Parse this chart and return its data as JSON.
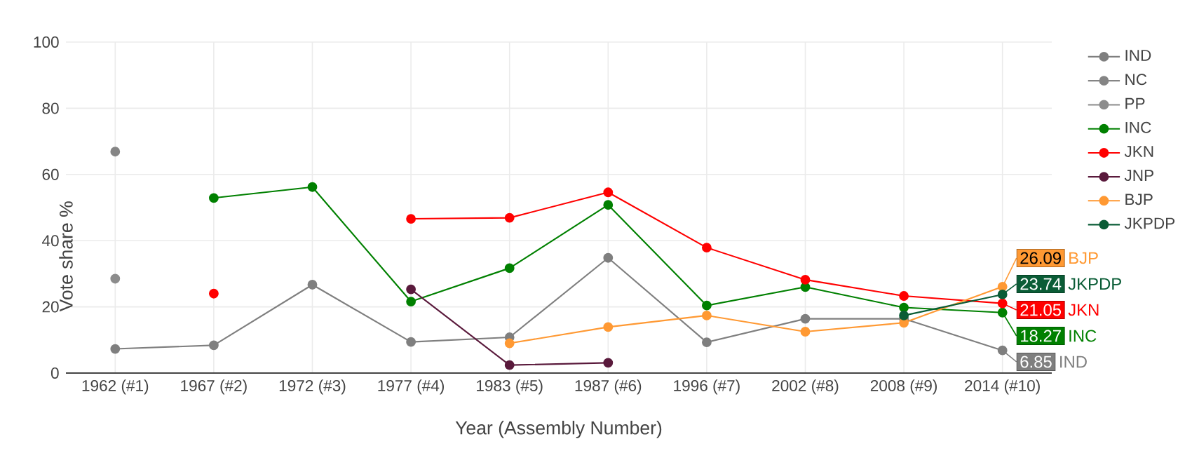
{
  "chart_data": {
    "type": "line",
    "xlabel": "Year (Assembly Number)",
    "ylabel": "Vote share %",
    "categories": [
      "1962 (#1)",
      "1967 (#2)",
      "1972 (#3)",
      "1977 (#4)",
      "1983 (#5)",
      "1987 (#6)",
      "1996 (#7)",
      "2002 (#8)",
      "2008 (#9)",
      "2014 (#10)"
    ],
    "annotations": [
      "BJP",
      "JKPDP",
      "JKN",
      "INC",
      "IND"
    ],
    "ylim": [
      0,
      100
    ],
    "yticks": [
      0,
      20,
      40,
      60,
      80,
      100
    ],
    "grid": true,
    "legend": "top right",
    "marker": "circle",
    "line_style": "solid",
    "series": [
      {
        "name": "IND",
        "color": "#7f7f7f",
        "values": [
          7.3,
          8.4,
          26.7,
          9.4,
          10.8,
          34.8,
          9.3,
          16.4,
          16.4,
          6.85
        ],
        "value_labels": [
          null,
          null,
          null,
          null,
          null,
          null,
          null,
          null,
          null,
          "6.85"
        ]
      },
      {
        "name": "NC",
        "color": "#858585",
        "values": [
          66.9,
          null,
          null,
          null,
          null,
          null,
          null,
          null,
          null,
          null
        ]
      },
      {
        "name": "PP",
        "color": "#8c8c8c",
        "values": [
          28.5,
          null,
          null,
          null,
          null,
          null,
          null,
          null,
          null,
          null
        ]
      },
      {
        "name": "INC",
        "color": "#008000",
        "values": [
          null,
          52.9,
          56.2,
          21.6,
          31.7,
          50.8,
          20.4,
          26.0,
          19.8,
          18.27
        ],
        "value_labels": [
          null,
          null,
          null,
          null,
          null,
          null,
          null,
          null,
          null,
          "18.27"
        ]
      },
      {
        "name": "JKN",
        "color": "#ff0000",
        "values": [
          null,
          24.0,
          null,
          46.6,
          46.9,
          54.6,
          37.9,
          28.2,
          23.3,
          21.05
        ],
        "value_labels": [
          null,
          null,
          null,
          null,
          null,
          null,
          null,
          null,
          null,
          "21.05"
        ]
      },
      {
        "name": "JNP",
        "color": "#5a1a3c",
        "values": [
          null,
          null,
          null,
          25.3,
          2.4,
          3.1,
          null,
          null,
          null,
          null
        ]
      },
      {
        "name": "BJP",
        "color": "#ff9933",
        "values": [
          null,
          null,
          null,
          null,
          9.0,
          13.9,
          17.4,
          12.5,
          15.2,
          26.09
        ],
        "value_labels": [
          null,
          null,
          null,
          null,
          null,
          null,
          null,
          null,
          null,
          "26.09"
        ]
      },
      {
        "name": "JKPDP",
        "color": "#0a5c36",
        "values": [
          null,
          null,
          null,
          null,
          null,
          null,
          null,
          null,
          17.4,
          23.74
        ],
        "value_labels": [
          null,
          null,
          null,
          null,
          null,
          null,
          null,
          null,
          null,
          "23.74"
        ]
      }
    ]
  }
}
